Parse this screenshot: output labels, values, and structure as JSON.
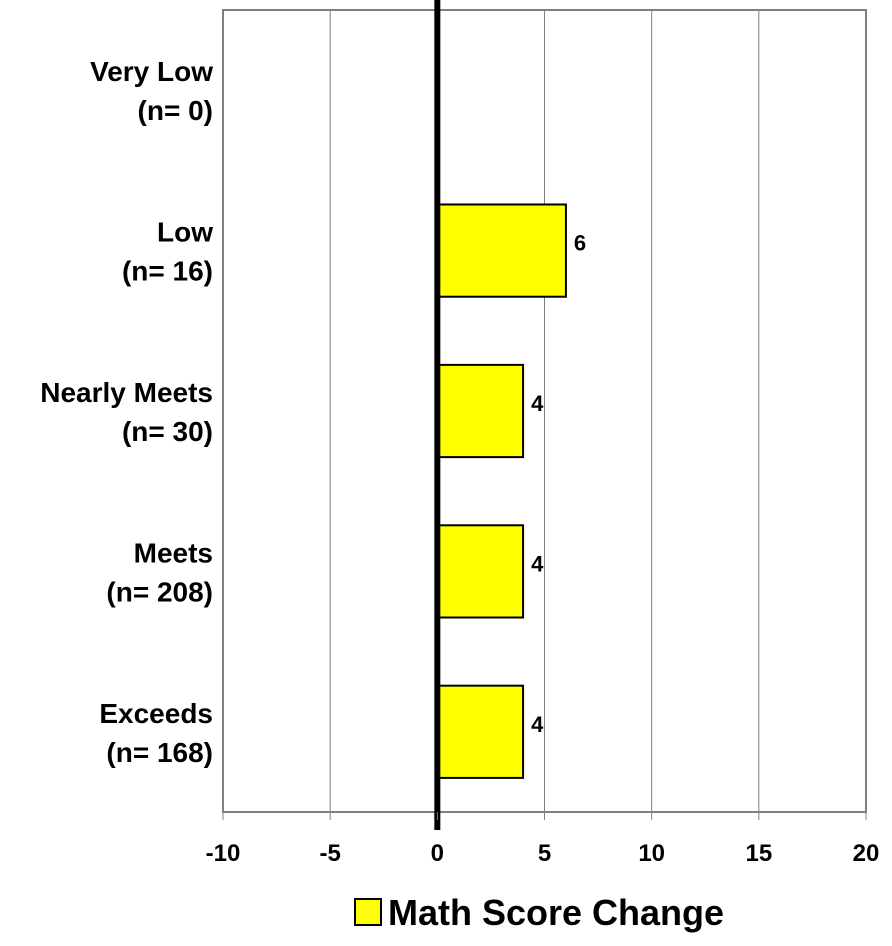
{
  "chart_data": {
    "type": "bar",
    "orientation": "horizontal",
    "categories": [
      {
        "name": "Very Low",
        "n": "(n= 0)"
      },
      {
        "name": "Low",
        "n": "(n= 16)"
      },
      {
        "name": "Nearly Meets",
        "n": "(n= 30)"
      },
      {
        "name": "Meets",
        "n": "(n= 208)"
      },
      {
        "name": "Exceeds",
        "n": "(n= 168)"
      }
    ],
    "series": [
      {
        "name": "Math Score Change",
        "values": [
          null,
          6,
          4,
          4,
          4
        ],
        "data_labels": [
          "",
          "6",
          "4",
          "4",
          "4"
        ],
        "color": "#FFFF00"
      }
    ],
    "xlim": [
      -10,
      20
    ],
    "xticks": [
      "-10",
      "-5",
      "0",
      "5",
      "10",
      "15",
      "20"
    ],
    "grid": true,
    "legend": "bottom"
  }
}
